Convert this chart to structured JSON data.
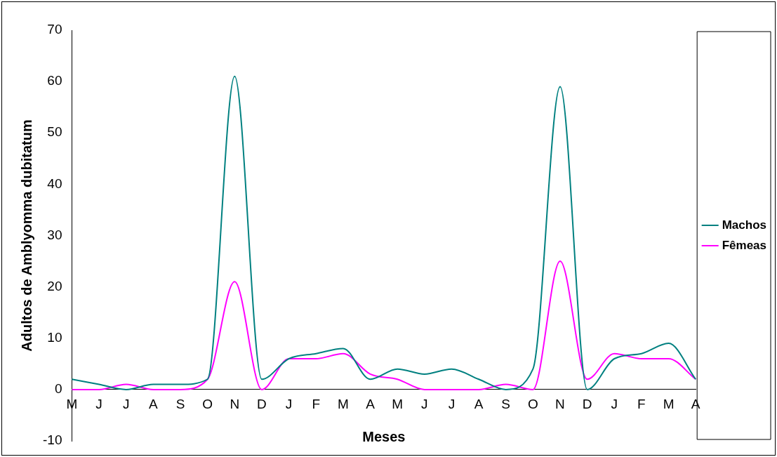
{
  "chart_data": {
    "type": "line",
    "xlabel": "Meses",
    "ylabel": "Adultos de Amblyomma dubitatum",
    "categories": [
      "M",
      "J",
      "J",
      "A",
      "S",
      "O",
      "N",
      "D",
      "J",
      "F",
      "M",
      "A",
      "M",
      "J",
      "J",
      "A",
      "S",
      "O",
      "N",
      "D",
      "J",
      "F",
      "M",
      "A"
    ],
    "series": [
      {
        "name": "Machos",
        "color": "#008080",
        "values": [
          2,
          1,
          0,
          1,
          1,
          2,
          61,
          2,
          6,
          7,
          8,
          2,
          4,
          3,
          4,
          2,
          0,
          4,
          59,
          0,
          6,
          7,
          9,
          2
        ]
      },
      {
        "name": "Fêmeas",
        "color": "#ff00ff",
        "values": [
          0,
          0,
          1,
          0,
          0,
          2,
          21,
          0,
          6,
          6,
          7,
          3,
          2,
          0,
          0,
          0,
          1,
          0,
          25,
          2,
          7,
          6,
          6,
          2
        ]
      }
    ],
    "ylim": [
      -10,
      70
    ],
    "yticks": [
      -10,
      0,
      10,
      20,
      30,
      40,
      50,
      60,
      70
    ],
    "grid": false,
    "legend": "right",
    "marker": "none",
    "line_style": "solid"
  }
}
